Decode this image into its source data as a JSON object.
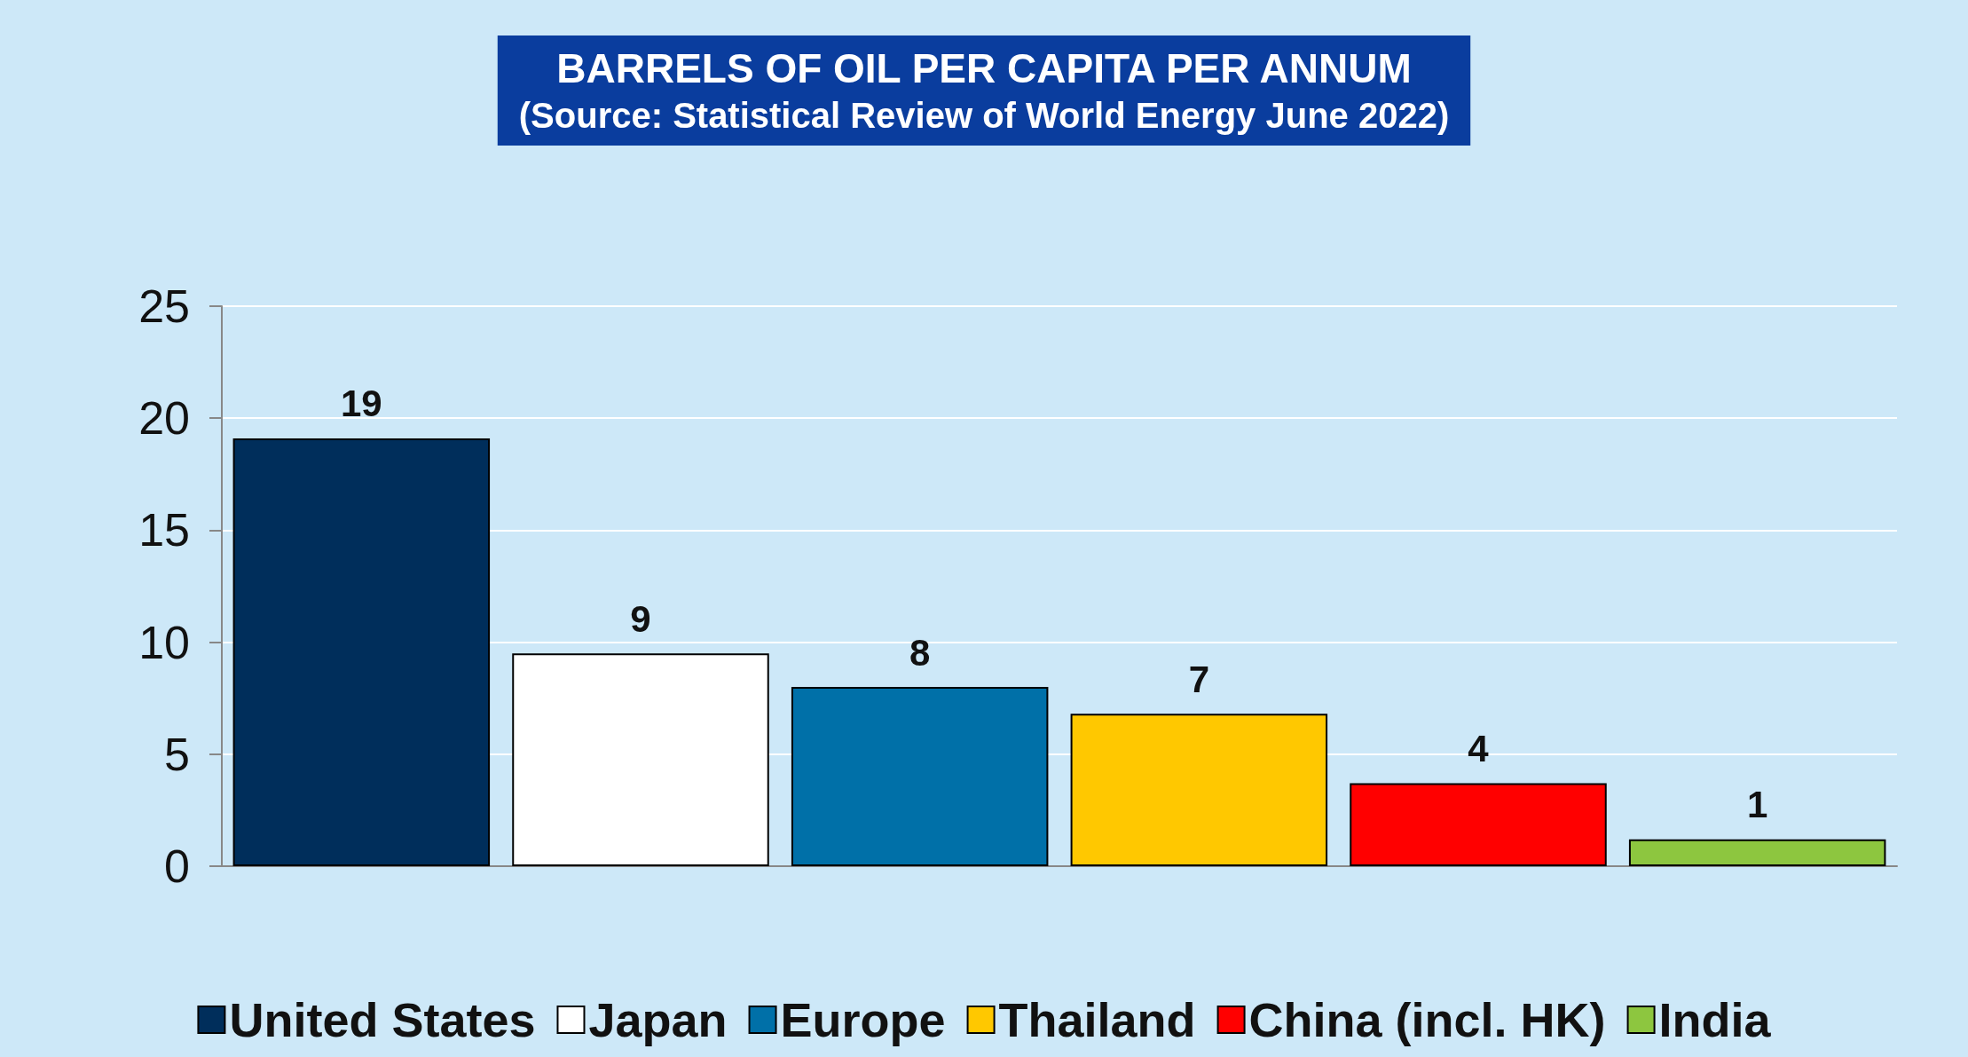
{
  "chart_data": {
    "type": "bar",
    "title": "BARRELS OF OIL PER CAPITA PER ANNUM",
    "subtitle": "(Source: Statistical Review of World Energy June 2022)",
    "categories": [
      null,
      null,
      null,
      null,
      null,
      null
    ],
    "series": [
      {
        "name": "United States",
        "color": "#002e5b",
        "values": [
          19.1,
          null,
          null,
          null,
          null,
          null
        ],
        "value_labels": [
          "19",
          null,
          null,
          null,
          null,
          null
        ]
      },
      {
        "name": "Japan",
        "color": "#ffffff",
        "values": [
          null,
          9.5,
          null,
          null,
          null,
          null
        ],
        "value_labels": [
          null,
          "9",
          null,
          null,
          null,
          null
        ]
      },
      {
        "name": "Europe",
        "color": "#0070a8",
        "values": [
          null,
          null,
          8,
          null,
          null,
          null
        ],
        "value_labels": [
          null,
          null,
          "8",
          null,
          null,
          null
        ]
      },
      {
        "name": "Thailand",
        "color": "#ffc800",
        "values": [
          null,
          null,
          null,
          6.8,
          null,
          null
        ],
        "value_labels": [
          null,
          null,
          null,
          "7",
          null,
          null
        ]
      },
      {
        "name": "China (incl. HK)",
        "color": "#ff0000",
        "values": [
          null,
          null,
          null,
          null,
          3.7,
          null
        ],
        "value_labels": [
          null,
          null,
          null,
          null,
          "4",
          null
        ]
      },
      {
        "name": "India",
        "color": "#8dc63f",
        "values": [
          null,
          null,
          null,
          null,
          null,
          1.2
        ],
        "value_labels": [
          null,
          null,
          null,
          null,
          null,
          "1"
        ]
      }
    ],
    "ylim": [
      0,
      25
    ],
    "yticks": [
      0,
      5,
      10,
      15,
      20,
      25
    ],
    "grid": "y",
    "legend": "bottom"
  }
}
